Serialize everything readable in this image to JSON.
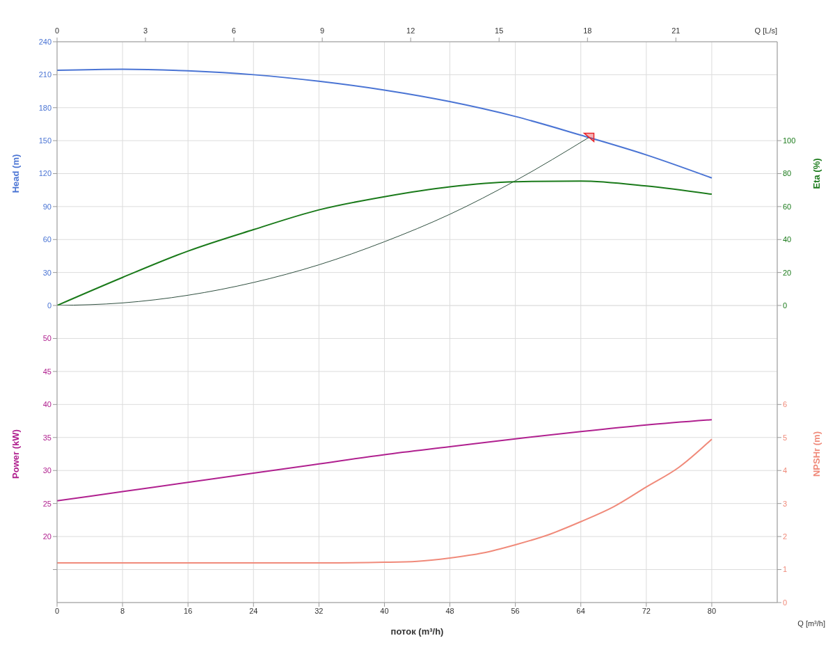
{
  "chart_data": [
    {
      "type": "line",
      "xlim": [
        0,
        88
      ],
      "xticks": [
        0,
        8,
        16,
        24,
        32,
        40,
        48,
        56,
        64,
        72,
        80
      ],
      "tick_labels": "y",
      "x2lim": [
        0,
        24.44
      ],
      "x2ticks": [
        0,
        3,
        6,
        9,
        12,
        15,
        18,
        21
      ],
      "x2label": "Q [L/s]",
      "ylabel": "Head (m)",
      "y2label": "Eta (%)",
      "ylim": [
        0,
        240
      ],
      "yticks": [
        0,
        30,
        60,
        90,
        120,
        150,
        180,
        210,
        240
      ],
      "y2lim": [
        0,
        160
      ],
      "y2ticks": [
        0,
        20,
        40,
        60,
        80,
        100
      ],
      "grid": true,
      "series": [
        {
          "color": "#4a74d4",
          "x": [
            0,
            8,
            16,
            24,
            32,
            40,
            48,
            56,
            64,
            72,
            80
          ],
          "values": [
            214,
            215,
            213.5,
            210,
            204,
            196,
            185.5,
            172,
            155,
            137,
            116
          ]
        },
        {
          "color": "#2f4f3f",
          "x": [
            0,
            8,
            16,
            24,
            32,
            40,
            48,
            56,
            65
          ],
          "values": [
            0,
            2.3,
            9.3,
            20.9,
            37,
            58,
            83,
            113.5,
            153
          ]
        },
        {
          "color": "#1a7a1a",
          "axis": "y2",
          "x": [
            0,
            8,
            16,
            24,
            32,
            40,
            48,
            56,
            64,
            72,
            80
          ],
          "values": [
            0,
            17,
            33,
            46,
            58,
            66,
            72,
            75,
            75.5,
            72.5,
            67.5
          ]
        },
        {
          "type": "scatter",
          "marker": "triangle",
          "color": "#e8262b",
          "x": [
            65
          ],
          "values": [
            153
          ]
        }
      ]
    },
    {
      "type": "line",
      "xlim": [
        0,
        88
      ],
      "xticks": [
        0,
        8,
        16,
        24,
        32,
        40,
        48,
        56,
        64,
        72,
        80
      ],
      "xlabel": "поток (m³/h)",
      "annotations": [
        "Q [m³/h]"
      ],
      "ylabel": "Power (kW)",
      "y2label": "NPSHr (m)",
      "ylim": [
        10,
        55
      ],
      "yticks": [
        {
          "value": 15,
          "label": null
        },
        20,
        25,
        30,
        35,
        40,
        45,
        50
      ],
      "y2lim": [
        0,
        9
      ],
      "y2ticks": [
        0,
        1,
        2,
        3,
        4,
        5,
        6
      ],
      "grid": true,
      "series": [
        {
          "color": "#b0208f",
          "x": [
            0,
            8,
            16,
            24,
            32,
            40,
            48,
            56,
            64,
            72,
            80
          ],
          "values": [
            25.4,
            26.8,
            28.2,
            29.6,
            31.0,
            32.4,
            33.6,
            34.8,
            35.9,
            36.9,
            37.7
          ]
        },
        {
          "color": "#f08a7a",
          "axis": "y2",
          "x": [
            0,
            8,
            16,
            24,
            32,
            40,
            44,
            48,
            52,
            56,
            60,
            64,
            68,
            72,
            76,
            80
          ],
          "values": [
            1.2,
            1.2,
            1.2,
            1.2,
            1.2,
            1.22,
            1.25,
            1.35,
            1.5,
            1.75,
            2.05,
            2.45,
            2.9,
            3.5,
            4.1,
            4.95
          ]
        }
      ]
    }
  ]
}
